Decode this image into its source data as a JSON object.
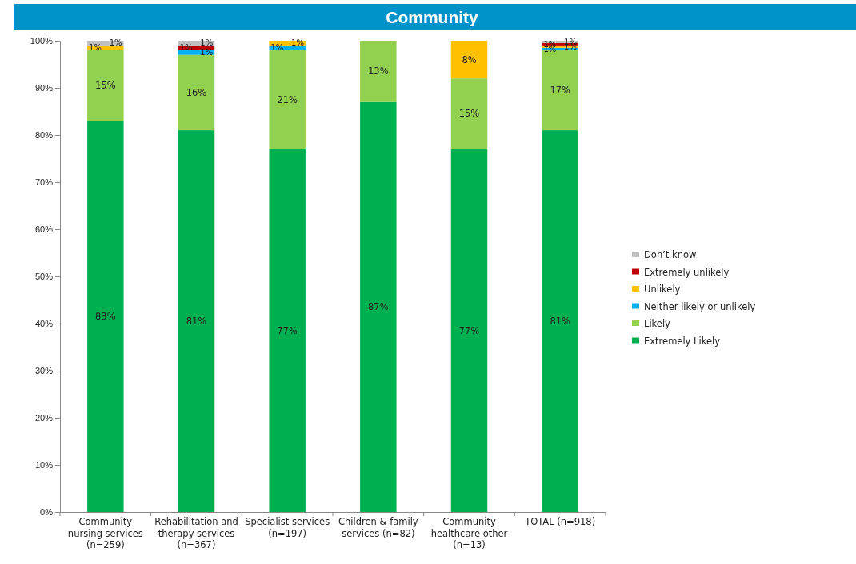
{
  "chart_data": {
    "type": "bar",
    "title": "Community",
    "stacked": true,
    "legend": "right",
    "grid": false,
    "categories": [
      "Community nursing services (n=259)",
      "Rehabilitation and therapy services (n=367)",
      "Specialist services (n=197)",
      "Children & family services (n=82)",
      "Community healthcare other (n=13)",
      "TOTAL (n=918)"
    ],
    "ylim": [
      0,
      100
    ],
    "yticks": [
      {
        "value": 0,
        "label": "0%"
      },
      {
        "value": 10,
        "label": "10%"
      },
      {
        "value": 20,
        "label": "20%"
      },
      {
        "value": 30,
        "label": "30%"
      },
      {
        "value": 40,
        "label": "40%"
      },
      {
        "value": 50,
        "label": "50%"
      },
      {
        "value": 60,
        "label": "60%"
      },
      {
        "value": 70,
        "label": "70%"
      },
      {
        "value": 80,
        "label": "80%"
      },
      {
        "value": 90,
        "label": "90%"
      },
      {
        "value": 100,
        "label": "100%"
      }
    ],
    "series": [
      {
        "name": "Extremely Likely",
        "color": "#00b050",
        "values": [
          83,
          81,
          77,
          87,
          77,
          81
        ],
        "value_labels": [
          "83%",
          "81%",
          "77%",
          "87%",
          "77%",
          "81%"
        ]
      },
      {
        "name": "Likely",
        "color": "#92d050",
        "values": [
          15,
          16,
          21,
          13,
          15,
          17
        ],
        "value_labels": [
          "15%",
          "16%",
          "21%",
          "13%",
          "15%",
          "17%"
        ]
      },
      {
        "name": "Neither likely or unlikely",
        "color": "#00b0f0",
        "values": [
          0,
          1,
          1,
          0,
          0,
          0.5
        ],
        "value_labels": [
          null,
          "1%",
          "1%",
          null,
          null,
          "1%"
        ]
      },
      {
        "name": "Unlikely",
        "color": "#ffc000",
        "values": [
          1,
          0,
          1,
          0,
          8,
          0.5
        ],
        "value_labels": [
          "1%",
          null,
          "1%",
          null,
          "8%",
          "1%"
        ]
      },
      {
        "name": "Extremely unlikely",
        "color": "#c00000",
        "values": [
          0,
          1,
          0,
          0,
          0,
          0.5
        ],
        "value_labels": [
          null,
          "1%",
          null,
          null,
          null,
          "1%"
        ]
      },
      {
        "name": "Don’t know",
        "color": "#bfbfbf",
        "values": [
          1,
          1,
          0,
          0,
          0,
          0.5
        ],
        "value_labels": [
          "1%",
          "1%",
          null,
          null,
          null,
          "1%"
        ]
      }
    ]
  }
}
